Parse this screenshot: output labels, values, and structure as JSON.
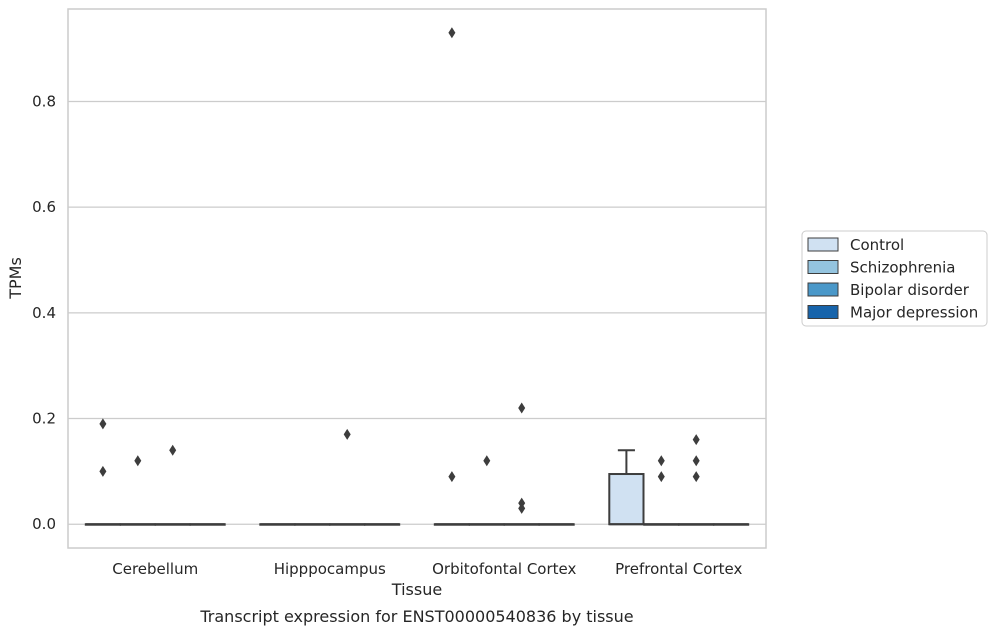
{
  "chart_data": {
    "type": "box",
    "title": "Transcript expression for ENST00000540836 by tissue",
    "xlabel": "Tissue",
    "ylabel": "TPMs",
    "ylim": [
      -0.045,
      0.975
    ],
    "yticks": [
      0.0,
      0.2,
      0.4,
      0.6,
      0.8
    ],
    "ytick_labels": [
      "0.0",
      "0.2",
      "0.4",
      "0.6",
      "0.8"
    ],
    "grid": "horizontal",
    "legend_position": "right",
    "categories": [
      "Cerebellum",
      "Hipppocampus",
      "Orbitofontal Cortex",
      "Prefrontal Cortex"
    ],
    "series": [
      {
        "name": "Control",
        "color": "#d0e1f2",
        "boxes": [
          {
            "q1": 0,
            "median": 0,
            "q3": 0,
            "whisker_low": 0,
            "whisker_high": 0,
            "outliers": [
              0.19,
              0.1
            ]
          },
          {
            "q1": 0,
            "median": 0,
            "q3": 0,
            "whisker_low": 0,
            "whisker_high": 0,
            "outliers": []
          },
          {
            "q1": 0,
            "median": 0,
            "q3": 0,
            "whisker_low": 0,
            "whisker_high": 0,
            "outliers": [
              0.93,
              0.09
            ]
          },
          {
            "q1": 0,
            "median": 0,
            "q3": 0.095,
            "whisker_low": 0,
            "whisker_high": 0.14,
            "outliers": []
          }
        ]
      },
      {
        "name": "Schizophrenia",
        "color": "#94c4df",
        "boxes": [
          {
            "q1": 0,
            "median": 0,
            "q3": 0,
            "whisker_low": 0,
            "whisker_high": 0,
            "outliers": [
              0.12
            ]
          },
          {
            "q1": 0,
            "median": 0,
            "q3": 0,
            "whisker_low": 0,
            "whisker_high": 0,
            "outliers": []
          },
          {
            "q1": 0,
            "median": 0,
            "q3": 0,
            "whisker_low": 0,
            "whisker_high": 0,
            "outliers": [
              0.12
            ]
          },
          {
            "q1": 0,
            "median": 0,
            "q3": 0,
            "whisker_low": 0,
            "whisker_high": 0,
            "outliers": [
              0.12,
              0.09
            ]
          }
        ]
      },
      {
        "name": "Bipolar disorder",
        "color": "#4a98c9",
        "boxes": [
          {
            "q1": 0,
            "median": 0,
            "q3": 0,
            "whisker_low": 0,
            "whisker_high": 0,
            "outliers": [
              0.14
            ]
          },
          {
            "q1": 0,
            "median": 0,
            "q3": 0,
            "whisker_low": 0,
            "whisker_high": 0,
            "outliers": [
              0.17
            ]
          },
          {
            "q1": 0,
            "median": 0,
            "q3": 0,
            "whisker_low": 0,
            "whisker_high": 0,
            "outliers": [
              0.22,
              0.04,
              0.03
            ]
          },
          {
            "q1": 0,
            "median": 0,
            "q3": 0,
            "whisker_low": 0,
            "whisker_high": 0,
            "outliers": [
              0.16,
              0.12,
              0.09
            ]
          }
        ]
      },
      {
        "name": "Major depression",
        "color": "#1764ab",
        "boxes": [
          {
            "q1": 0,
            "median": 0,
            "q3": 0,
            "whisker_low": 0,
            "whisker_high": 0,
            "outliers": []
          },
          {
            "q1": 0,
            "median": 0,
            "q3": 0,
            "whisker_low": 0,
            "whisker_high": 0,
            "outliers": []
          },
          {
            "q1": 0,
            "median": 0,
            "q3": 0,
            "whisker_low": 0,
            "whisker_high": 0,
            "outliers": []
          },
          {
            "q1": 0,
            "median": 0,
            "q3": 0,
            "whisker_low": 0,
            "whisker_high": 0,
            "outliers": []
          }
        ]
      }
    ]
  }
}
